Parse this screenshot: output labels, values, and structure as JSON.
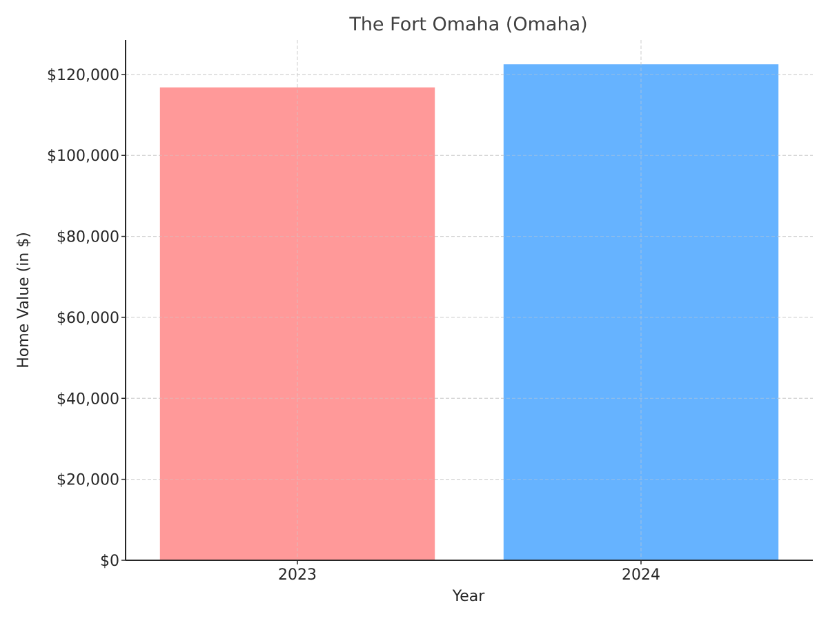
{
  "chart_data": {
    "type": "bar",
    "title": "The Fort Omaha (Omaha)",
    "xlabel": "Year",
    "ylabel": "Home Value (in $)",
    "categories": [
      "2023",
      "2024"
    ],
    "values": [
      116800,
      122500
    ],
    "bar_colors": [
      "#ff9999",
      "#66b3ff"
    ],
    "ylim": [
      0,
      128500
    ],
    "yticks": [
      0,
      20000,
      40000,
      60000,
      80000,
      100000,
      120000
    ],
    "ytick_labels": [
      "$0",
      "$20,000",
      "$40,000",
      "$60,000",
      "$80,000",
      "$100,000",
      "$120,000"
    ],
    "grid": true,
    "legend": "none"
  }
}
